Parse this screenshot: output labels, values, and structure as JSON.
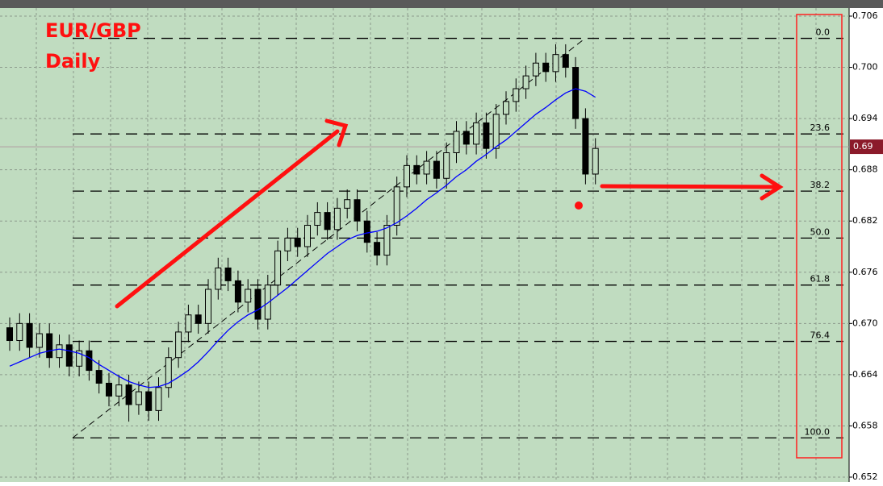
{
  "chart_data": {
    "type": "candlestick",
    "title": "EUR/GBP",
    "subtitle": "Daily",
    "ylim": [
      0.652,
      0.706
    ],
    "yticks": [
      0.706,
      {
        "value": 0.7,
        "label": "0.700"
      },
      0.694,
      0.688,
      0.682,
      0.676,
      {
        "value": 0.67,
        "label": "0.670"
      },
      0.664,
      0.658,
      0.652
    ],
    "grid": true,
    "up_color": "#c0dcc0",
    "down_color": "#000000",
    "series": {
      "open": [
        0.6695,
        0.668,
        0.67,
        0.6672,
        0.6688,
        0.666,
        0.6675,
        0.665,
        0.6668,
        0.6645,
        0.663,
        0.6615,
        0.6628,
        0.6605,
        0.662,
        0.6598,
        0.6625,
        0.666,
        0.669,
        0.671,
        0.67,
        0.674,
        0.6765,
        0.675,
        0.6725,
        0.674,
        0.6705,
        0.6745,
        0.6785,
        0.68,
        0.679,
        0.6815,
        0.683,
        0.681,
        0.6835,
        0.6845,
        0.682,
        0.6795,
        0.678,
        0.6815,
        0.686,
        0.6885,
        0.6875,
        0.689,
        0.687,
        0.69,
        0.6925,
        0.691,
        0.6935,
        0.6905,
        0.6945,
        0.696,
        0.6975,
        0.699,
        0.7005,
        0.6995,
        0.7015,
        0.7,
        0.694,
        0.6875
      ],
      "high": [
        0.6707,
        0.6712,
        0.6712,
        0.67,
        0.67,
        0.6687,
        0.6687,
        0.668,
        0.668,
        0.6657,
        0.6642,
        0.664,
        0.664,
        0.6632,
        0.6632,
        0.6637,
        0.6672,
        0.6702,
        0.6722,
        0.6722,
        0.6752,
        0.6777,
        0.6777,
        0.6762,
        0.6752,
        0.6752,
        0.6757,
        0.6797,
        0.6812,
        0.6812,
        0.6827,
        0.6842,
        0.6842,
        0.6847,
        0.6857,
        0.6857,
        0.6832,
        0.6807,
        0.6827,
        0.6872,
        0.6897,
        0.6897,
        0.6902,
        0.6902,
        0.6912,
        0.6937,
        0.6937,
        0.6947,
        0.6947,
        0.6957,
        0.6972,
        0.6987,
        0.7002,
        0.7017,
        0.7017,
        0.7027,
        0.7027,
        0.7012,
        0.6952,
        0.6917
      ],
      "low": [
        0.6668,
        0.6668,
        0.666,
        0.666,
        0.6648,
        0.6648,
        0.6638,
        0.6638,
        0.6633,
        0.6618,
        0.6603,
        0.6603,
        0.6585,
        0.6593,
        0.6586,
        0.6586,
        0.6613,
        0.6648,
        0.6678,
        0.6688,
        0.6688,
        0.6728,
        0.6738,
        0.6713,
        0.6713,
        0.6693,
        0.6693,
        0.6733,
        0.6773,
        0.6778,
        0.6778,
        0.6803,
        0.6798,
        0.6798,
        0.6823,
        0.6808,
        0.6783,
        0.6768,
        0.6768,
        0.6803,
        0.6848,
        0.6863,
        0.6863,
        0.6858,
        0.6858,
        0.6888,
        0.6898,
        0.6898,
        0.6893,
        0.6893,
        0.6933,
        0.6948,
        0.6963,
        0.6978,
        0.6983,
        0.6983,
        0.6988,
        0.6928,
        0.6863,
        0.6863
      ],
      "close": [
        0.668,
        0.67,
        0.6672,
        0.6688,
        0.666,
        0.6675,
        0.665,
        0.6668,
        0.6645,
        0.663,
        0.6615,
        0.6628,
        0.6605,
        0.662,
        0.6598,
        0.6625,
        0.666,
        0.669,
        0.671,
        0.67,
        0.674,
        0.6765,
        0.675,
        0.6725,
        0.674,
        0.6705,
        0.6745,
        0.6785,
        0.68,
        0.679,
        0.6815,
        0.683,
        0.681,
        0.6835,
        0.6845,
        0.682,
        0.6795,
        0.678,
        0.6815,
        0.686,
        0.6885,
        0.6875,
        0.689,
        0.687,
        0.69,
        0.6925,
        0.691,
        0.6935,
        0.6905,
        0.6945,
        0.696,
        0.6975,
        0.699,
        0.7005,
        0.6995,
        0.7015,
        0.7,
        0.694,
        0.6875,
        0.6905
      ]
    },
    "moving_average": {
      "color": "#0000ff",
      "values": [
        0.665,
        0.6655,
        0.666,
        0.6665,
        0.6668,
        0.667,
        0.6668,
        0.6665,
        0.666,
        0.6652,
        0.6645,
        0.6638,
        0.6632,
        0.6628,
        0.6625,
        0.6626,
        0.663,
        0.6637,
        0.6645,
        0.6655,
        0.6667,
        0.668,
        0.6692,
        0.6702,
        0.671,
        0.6716,
        0.6724,
        0.6733,
        0.6742,
        0.6752,
        0.6762,
        0.6772,
        0.6782,
        0.679,
        0.6798,
        0.6803,
        0.6806,
        0.6808,
        0.6812,
        0.6818,
        0.6826,
        0.6835,
        0.6845,
        0.6853,
        0.6862,
        0.6872,
        0.688,
        0.689,
        0.6898,
        0.6907,
        0.6915,
        0.6925,
        0.6935,
        0.6945,
        0.6953,
        0.6962,
        0.697,
        0.6975,
        0.6972,
        0.6965
      ]
    },
    "current_price": {
      "value": 0.6907,
      "label": "0.69"
    },
    "fib_levels": [
      {
        "level": {
          "value": 0,
          "label": "0.0"
        },
        "price": 0.7034
      },
      {
        "level": 23.6,
        "price": 0.6922
      },
      {
        "level": 38.2,
        "price": 0.6855
      },
      {
        "level": {
          "value": 50,
          "label": "50.0"
        },
        "price": 0.68
      },
      {
        "level": 61.8,
        "price": 0.6745
      },
      {
        "level": 76.4,
        "price": 0.6679
      },
      {
        "level": {
          "value": 100,
          "label": "100.0"
        },
        "price": 0.6566
      }
    ]
  }
}
